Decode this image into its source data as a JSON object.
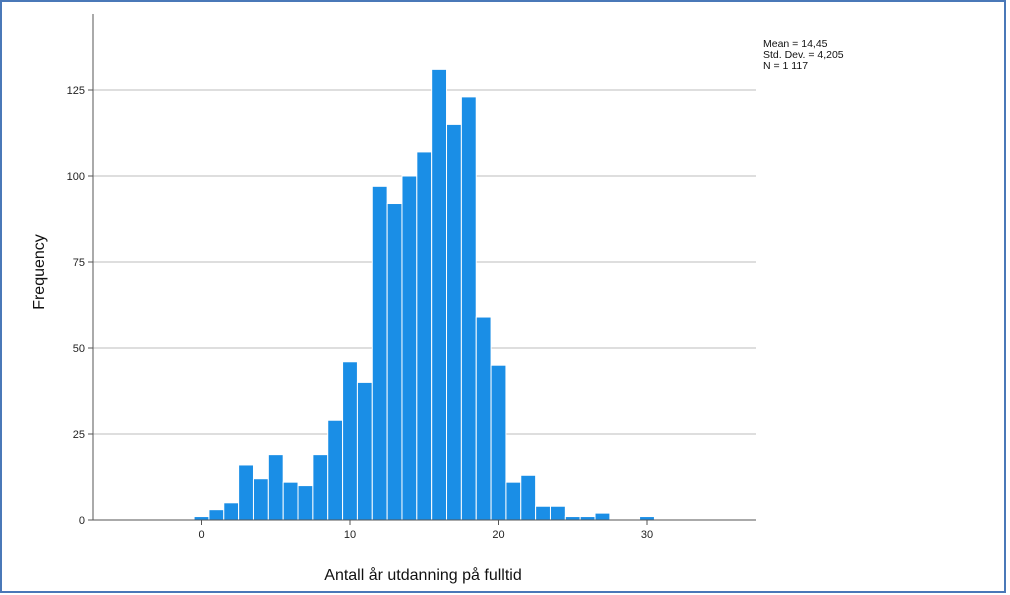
{
  "chart_data": {
    "type": "bar",
    "subtype": "histogram",
    "xlabel": "Antall år utdanning på fulltid",
    "ylabel": "Frequency",
    "xlim": [
      -6,
      36.5
    ],
    "ylim": [
      0,
      150
    ],
    "x_ticks": [
      0,
      10,
      20,
      30
    ],
    "y_ticks": [
      0,
      25,
      50,
      75,
      100,
      125
    ],
    "bin_width": 1,
    "grid": "horizontal",
    "bins": [
      {
        "x": 0,
        "value": 1
      },
      {
        "x": 1,
        "value": 3
      },
      {
        "x": 2,
        "value": 5
      },
      {
        "x": 3,
        "value": 16
      },
      {
        "x": 4,
        "value": 12
      },
      {
        "x": 5,
        "value": 19
      },
      {
        "x": 6,
        "value": 11
      },
      {
        "x": 7,
        "value": 10
      },
      {
        "x": 8,
        "value": 19
      },
      {
        "x": 9,
        "value": 29
      },
      {
        "x": 10,
        "value": 46
      },
      {
        "x": 11,
        "value": 40
      },
      {
        "x": 12,
        "value": 97
      },
      {
        "x": 13,
        "value": 92
      },
      {
        "x": 14,
        "value": 100
      },
      {
        "x": 15,
        "value": 107
      },
      {
        "x": 16,
        "value": 131
      },
      {
        "x": 17,
        "value": 115
      },
      {
        "x": 18,
        "value": 123
      },
      {
        "x": 19,
        "value": 59
      },
      {
        "x": 20,
        "value": 45
      },
      {
        "x": 21,
        "value": 11
      },
      {
        "x": 22,
        "value": 13
      },
      {
        "x": 23,
        "value": 4
      },
      {
        "x": 24,
        "value": 4
      },
      {
        "x": 25,
        "value": 1
      },
      {
        "x": 26,
        "value": 1
      },
      {
        "x": 27,
        "value": 2
      },
      {
        "x": 30,
        "value": 1
      }
    ],
    "stats": {
      "mean": "Mean = 14,45",
      "std_dev": "Std. Dev. = 4,205",
      "n": "N = 1 117"
    },
    "colors": {
      "bar_fill": "#1a8ee6",
      "bar_edge": "#ffffff",
      "grid": "#bdbdbd",
      "axis": "#555555",
      "frame": "#4a78b8"
    }
  }
}
